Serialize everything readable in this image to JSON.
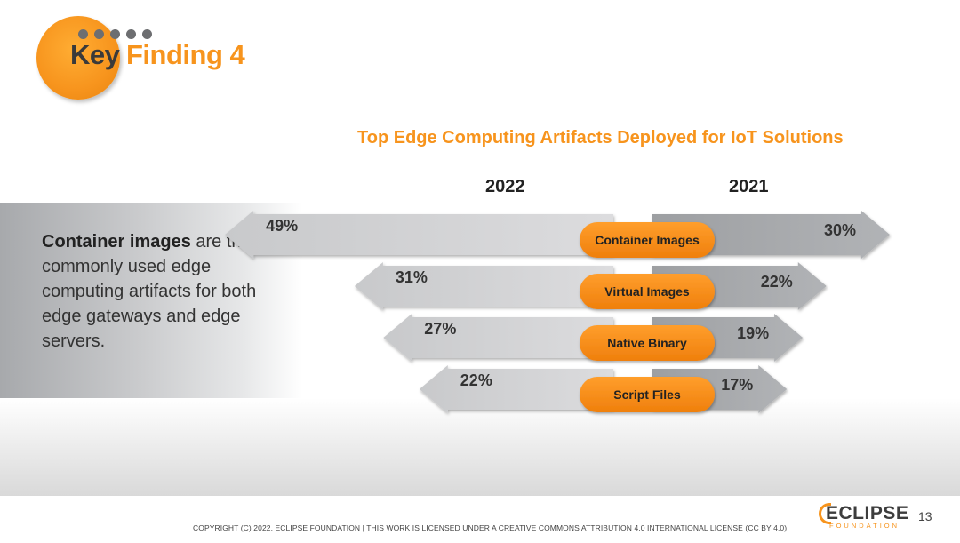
{
  "header": {
    "title_part1": "Key",
    "title_part2": "Finding 4"
  },
  "finding": {
    "bold": "Container images",
    "rest": " are the most commonly used edge computing artifacts for both edge gateways and edge servers."
  },
  "chart_data": {
    "type": "bar",
    "title": "Top Edge Computing Artifacts Deployed for IoT Solutions",
    "categories": [
      "Container Images",
      "Virtual Images",
      "Native Binary",
      "Script Files"
    ],
    "series": [
      {
        "name": "2022",
        "values": [
          49,
          31,
          27,
          22
        ],
        "labels": [
          "49%",
          "31%",
          "27%",
          "22%"
        ]
      },
      {
        "name": "2021",
        "values": [
          30,
          22,
          19,
          17
        ],
        "labels": [
          "30%",
          "22%",
          "19%",
          "17%"
        ]
      }
    ],
    "unit": "%"
  },
  "footer": {
    "copyright": "COPYRIGHT (C) 2022, ECLIPSE FOUNDATION | THIS WORK IS LICENSED UNDER A CREATIVE COMMONS ATTRIBUTION 4.0 INTERNATIONAL LICENSE (CC BY 4.0)",
    "logo": "ECLIPSE",
    "logo_sub": "FOUNDATION",
    "page_number": "13"
  },
  "colors": {
    "accent": "#f7941d",
    "arrow_2022": "#d4d5d7",
    "arrow_2021": "#a7a9ac"
  }
}
